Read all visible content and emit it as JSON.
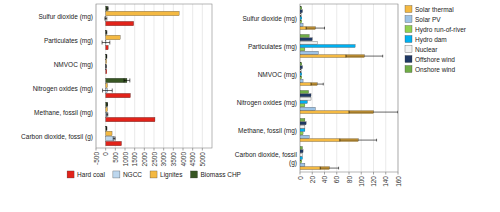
{
  "chart_data": [
    {
      "type": "bar",
      "orientation": "horizontal",
      "categories": [
        "Carbon dioxide, fossil (g)",
        "Methane, fossil (mg)",
        "Nitrogen oxides (mg)",
        "NMVOC (mg)",
        "Particulates (mg)",
        "Sulfur dioxide (mg)"
      ],
      "series": [
        {
          "name": "Hard coal",
          "color": "#e2231a",
          "values": [
            820,
            2550,
            1280,
            60,
            130,
            1450
          ],
          "errors": [
            0,
            0,
            0,
            0,
            0,
            0
          ]
        },
        {
          "name": "NGCC",
          "color": "#bdd7ee",
          "values": [
            440,
            80,
            90,
            20,
            15,
            10
          ],
          "errors": [
            50,
            30,
            250,
            5,
            200,
            50
          ]
        },
        {
          "name": "Lignites",
          "color": "#f4b942",
          "values": [
            330,
            90,
            90,
            50,
            750,
            3800
          ],
          "errors": [
            0,
            0,
            0,
            0,
            0,
            0
          ]
        },
        {
          "name": "Biomass CHP",
          "color": "#375623",
          "values": [
            50,
            80,
            1100,
            50,
            40,
            100
          ],
          "errors": [
            10,
            10,
            150,
            5,
            20,
            30
          ]
        }
      ],
      "xlim": [
        -500,
        5500
      ],
      "xticks": [
        -500,
        0,
        500,
        1000,
        1500,
        2000,
        2500,
        3000,
        3500,
        4000,
        4500,
        5000
      ],
      "grid": true,
      "legend": "bottom"
    },
    {
      "type": "bar",
      "orientation": "horizontal",
      "categories": [
        "Carbon dioxide, fossil\n(g)",
        "Methane, fossil (mg)",
        "Nitrogen oxides (mg)",
        "NMVOC (mg)",
        "Particulates (mg)",
        "Sulfur dioxide (mg)"
      ],
      "series": [
        {
          "name": "Solar thermal",
          "color": "#f4b942",
          "values": [
            48,
            95,
            120,
            28,
            105,
            25
          ],
          "errors": [
            15,
            30,
            40,
            10,
            30,
            15
          ]
        },
        {
          "name": "Solar PV",
          "color": "#9dc3e6",
          "values": [
            8,
            15,
            25,
            5,
            30,
            5
          ],
          "errors": [
            0,
            0,
            0,
            0,
            0,
            0
          ]
        },
        {
          "name": "Hydro run-of-river",
          "color": "#92d050",
          "values": [
            3,
            5,
            8,
            3,
            8,
            3
          ],
          "errors": [
            0,
            0,
            0,
            0,
            0,
            0
          ]
        },
        {
          "name": "Hydro dam",
          "color": "#00b0f0",
          "values": [
            4,
            8,
            12,
            3,
            90,
            3
          ],
          "errors": [
            0,
            0,
            0,
            0,
            0,
            0
          ]
        },
        {
          "name": "Nuclear",
          "color": "#f2f2f2",
          "values": [
            4,
            8,
            18,
            3,
            28,
            3
          ],
          "errors": [
            0,
            0,
            0,
            0,
            0,
            0
          ]
        },
        {
          "name": "Offshore wind",
          "color": "#1f3864",
          "values": [
            5,
            10,
            18,
            4,
            20,
            4
          ],
          "errors": [
            0,
            0,
            0,
            0,
            0,
            0
          ]
        },
        {
          "name": "Onshore wind",
          "color": "#70ad47",
          "values": [
            4,
            8,
            14,
            3,
            15,
            3
          ],
          "errors": [
            0,
            0,
            0,
            0,
            0,
            0
          ]
        }
      ],
      "xlim": [
        0,
        160
      ],
      "xticks": [
        0,
        20,
        40,
        60,
        80,
        100,
        120,
        140,
        160
      ],
      "grid": true,
      "legend": "right"
    }
  ]
}
